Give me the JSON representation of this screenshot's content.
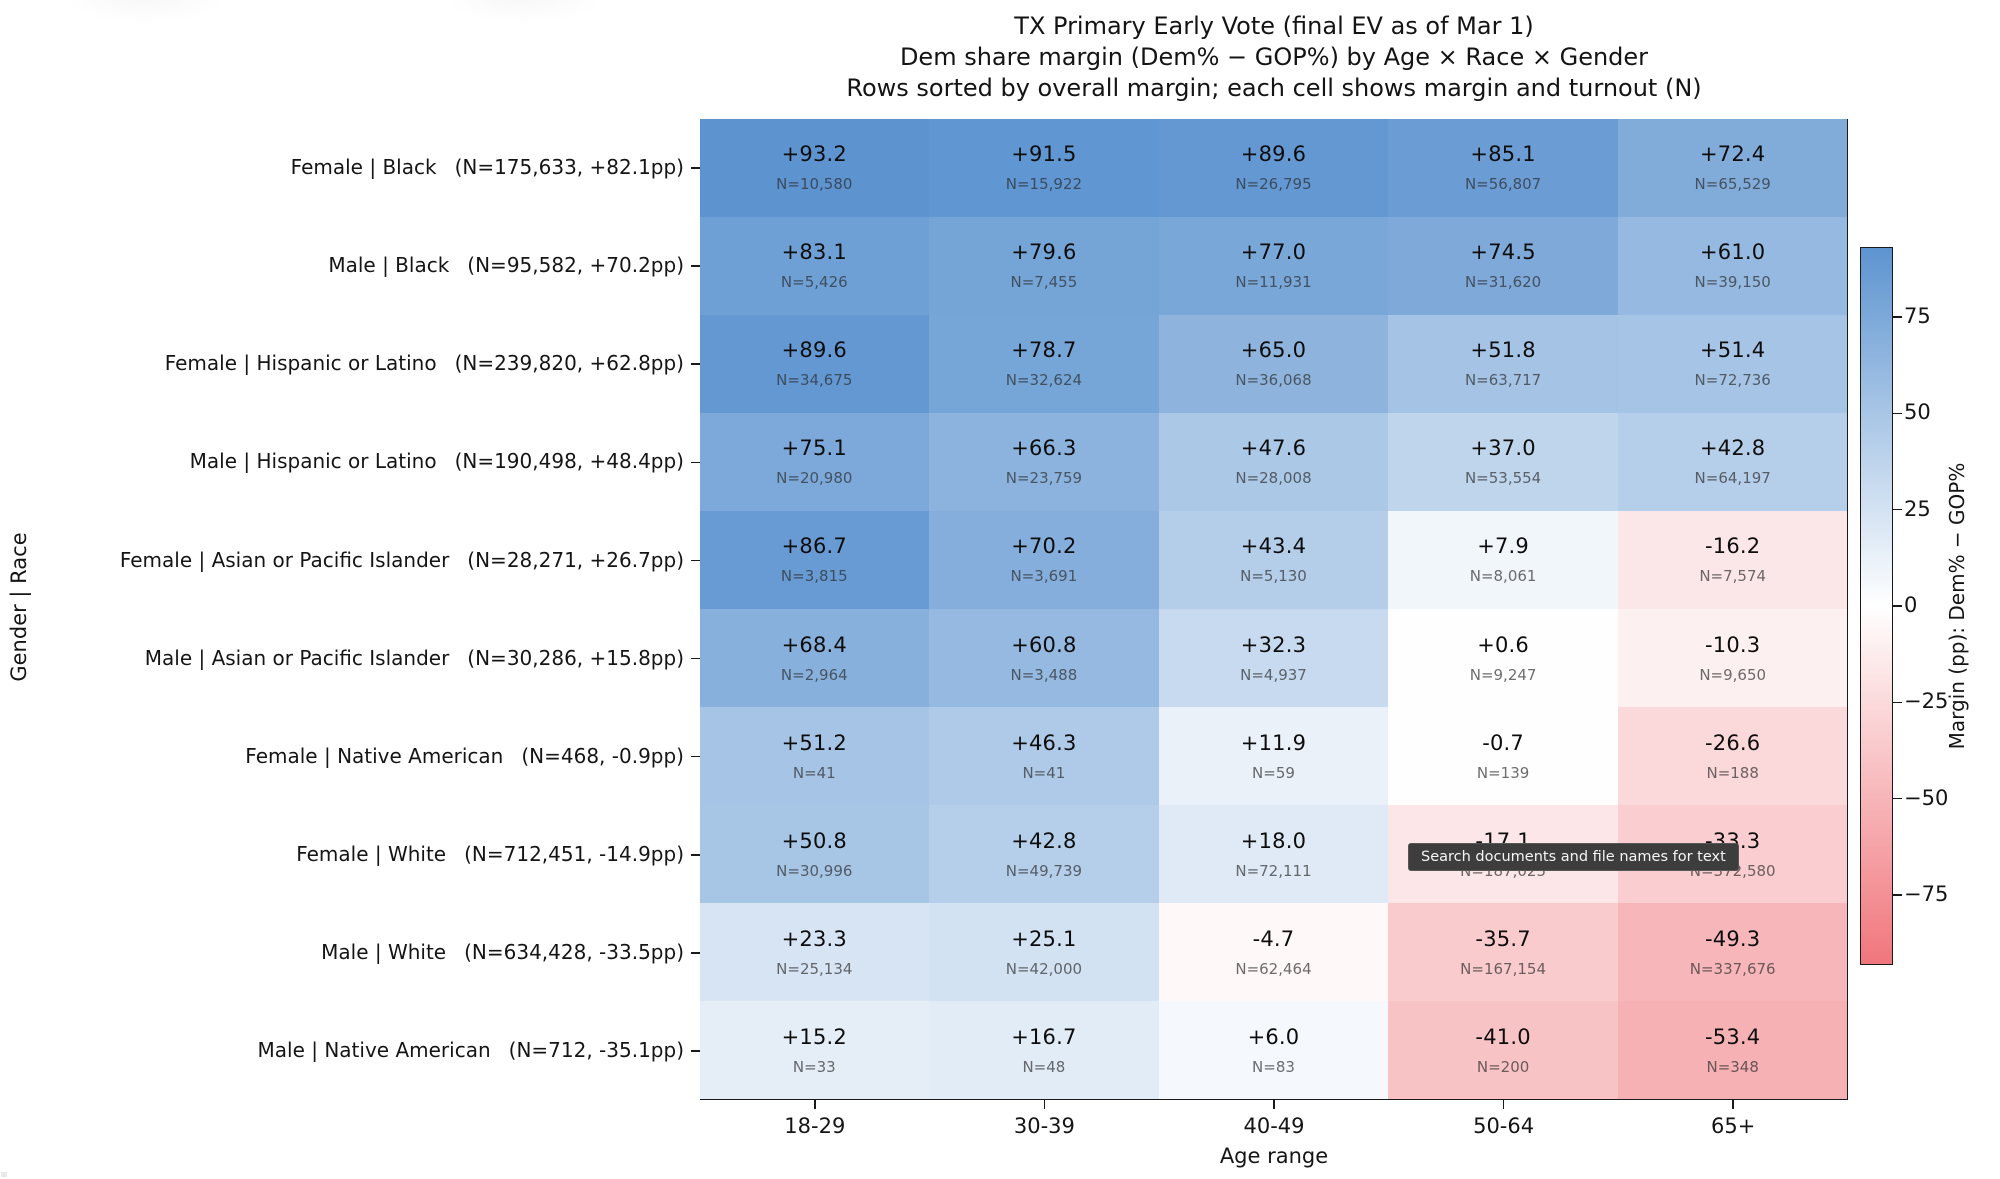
{
  "header": {
    "title_line1": "TX Primary Early Vote (final EV as of Mar 1)",
    "title_line2": "Dem share margin (Dem% − GOP%) by Age × Race × Gender",
    "title_line3": "Rows sorted by overall margin; each cell shows margin and turnout (N)"
  },
  "tooltip": {
    "text": "Search documents and file names for text"
  },
  "chart_data": {
    "type": "heatmap",
    "title": "TX Primary Early Vote (final EV as of Mar 1)",
    "subtitle": "Dem share margin (Dem% − GOP%) by Age × Race × Gender",
    "note": "Rows sorted by overall margin; each cell shows margin and turnout (N)",
    "xlabel": "Age range",
    "ylabel": "Gender | Race",
    "x_categories": [
      "18-29",
      "30-39",
      "40-49",
      "50-64",
      "65+"
    ],
    "legend_position": "right-colorbar",
    "grid": false,
    "rows": [
      {
        "label": "Female | Black",
        "summary": "(N=175,633, +82.1pp)",
        "cells": [
          {
            "m": 93.2,
            "v": "+93.2",
            "n": "N=10,580"
          },
          {
            "m": 91.5,
            "v": "+91.5",
            "n": "N=15,922"
          },
          {
            "m": 89.6,
            "v": "+89.6",
            "n": "N=26,795"
          },
          {
            "m": 85.1,
            "v": "+85.1",
            "n": "N=56,807"
          },
          {
            "m": 72.4,
            "v": "+72.4",
            "n": "N=65,529"
          }
        ]
      },
      {
        "label": "Male | Black",
        "summary": "(N=95,582, +70.2pp)",
        "cells": [
          {
            "m": 83.1,
            "v": "+83.1",
            "n": "N=5,426"
          },
          {
            "m": 79.6,
            "v": "+79.6",
            "n": "N=7,455"
          },
          {
            "m": 77.0,
            "v": "+77.0",
            "n": "N=11,931"
          },
          {
            "m": 74.5,
            "v": "+74.5",
            "n": "N=31,620"
          },
          {
            "m": 61.0,
            "v": "+61.0",
            "n": "N=39,150"
          }
        ]
      },
      {
        "label": "Female | Hispanic or Latino",
        "summary": "(N=239,820, +62.8pp)",
        "cells": [
          {
            "m": 89.6,
            "v": "+89.6",
            "n": "N=34,675"
          },
          {
            "m": 78.7,
            "v": "+78.7",
            "n": "N=32,624"
          },
          {
            "m": 65.0,
            "v": "+65.0",
            "n": "N=36,068"
          },
          {
            "m": 51.8,
            "v": "+51.8",
            "n": "N=63,717"
          },
          {
            "m": 51.4,
            "v": "+51.4",
            "n": "N=72,736"
          }
        ]
      },
      {
        "label": "Male | Hispanic or Latino",
        "summary": "(N=190,498, +48.4pp)",
        "cells": [
          {
            "m": 75.1,
            "v": "+75.1",
            "n": "N=20,980"
          },
          {
            "m": 66.3,
            "v": "+66.3",
            "n": "N=23,759"
          },
          {
            "m": 47.6,
            "v": "+47.6",
            "n": "N=28,008"
          },
          {
            "m": 37.0,
            "v": "+37.0",
            "n": "N=53,554"
          },
          {
            "m": 42.8,
            "v": "+42.8",
            "n": "N=64,197"
          }
        ]
      },
      {
        "label": "Female | Asian or Pacific Islander",
        "summary": "(N=28,271, +26.7pp)",
        "cells": [
          {
            "m": 86.7,
            "v": "+86.7",
            "n": "N=3,815"
          },
          {
            "m": 70.2,
            "v": "+70.2",
            "n": "N=3,691"
          },
          {
            "m": 43.4,
            "v": "+43.4",
            "n": "N=5,130"
          },
          {
            "m": 7.9,
            "v": "+7.9",
            "n": "N=8,061"
          },
          {
            "m": -16.2,
            "v": "-16.2",
            "n": "N=7,574"
          }
        ]
      },
      {
        "label": "Male | Asian or Pacific Islander",
        "summary": "(N=30,286, +15.8pp)",
        "cells": [
          {
            "m": 68.4,
            "v": "+68.4",
            "n": "N=2,964"
          },
          {
            "m": 60.8,
            "v": "+60.8",
            "n": "N=3,488"
          },
          {
            "m": 32.3,
            "v": "+32.3",
            "n": "N=4,937"
          },
          {
            "m": 0.6,
            "v": "+0.6",
            "n": "N=9,247"
          },
          {
            "m": -10.3,
            "v": "-10.3",
            "n": "N=9,650"
          }
        ]
      },
      {
        "label": "Female | Native American",
        "summary": "(N=468, -0.9pp)",
        "cells": [
          {
            "m": 51.2,
            "v": "+51.2",
            "n": "N=41"
          },
          {
            "m": 46.3,
            "v": "+46.3",
            "n": "N=41"
          },
          {
            "m": 11.9,
            "v": "+11.9",
            "n": "N=59"
          },
          {
            "m": -0.7,
            "v": "-0.7",
            "n": "N=139"
          },
          {
            "m": -26.6,
            "v": "-26.6",
            "n": "N=188"
          }
        ]
      },
      {
        "label": "Female | White",
        "summary": "(N=712,451, -14.9pp)",
        "cells": [
          {
            "m": 50.8,
            "v": "+50.8",
            "n": "N=30,996"
          },
          {
            "m": 42.8,
            "v": "+42.8",
            "n": "N=49,739"
          },
          {
            "m": 18.0,
            "v": "+18.0",
            "n": "N=72,111"
          },
          {
            "m": -17.1,
            "v": "-17.1",
            "n": "N=187,025"
          },
          {
            "m": -33.3,
            "v": "-33.3",
            "n": "N=372,580"
          }
        ]
      },
      {
        "label": "Male | White",
        "summary": "(N=634,428, -33.5pp)",
        "cells": [
          {
            "m": 23.3,
            "v": "+23.3",
            "n": "N=25,134"
          },
          {
            "m": 25.1,
            "v": "+25.1",
            "n": "N=42,000"
          },
          {
            "m": -4.7,
            "v": "-4.7",
            "n": "N=62,464"
          },
          {
            "m": -35.7,
            "v": "-35.7",
            "n": "N=167,154"
          },
          {
            "m": -49.3,
            "v": "-49.3",
            "n": "N=337,676"
          }
        ]
      },
      {
        "label": "Male | Native American",
        "summary": "(N=712, -35.1pp)",
        "cells": [
          {
            "m": 15.2,
            "v": "+15.2",
            "n": "N=33"
          },
          {
            "m": 16.7,
            "v": "+16.7",
            "n": "N=48"
          },
          {
            "m": 6.0,
            "v": "+6.0",
            "n": "N=83"
          },
          {
            "m": -41.0,
            "v": "-41.0",
            "n": "N=200"
          },
          {
            "m": -53.4,
            "v": "-53.4",
            "n": "N=348"
          }
        ]
      }
    ],
    "colorbar": {
      "label": "Margin (pp): Dem% − GOP%",
      "tick_labels": [
        "75",
        "50",
        "25",
        "0",
        "−25",
        "−50",
        "−75"
      ],
      "tick_values": [
        75,
        50,
        25,
        0,
        -25,
        -50,
        -75
      ],
      "vmin": -93.2,
      "vmax": 93.2,
      "pos_color": "#5d94d0",
      "mid_color": "#ffffff",
      "neg_color": "#f0767c"
    }
  }
}
